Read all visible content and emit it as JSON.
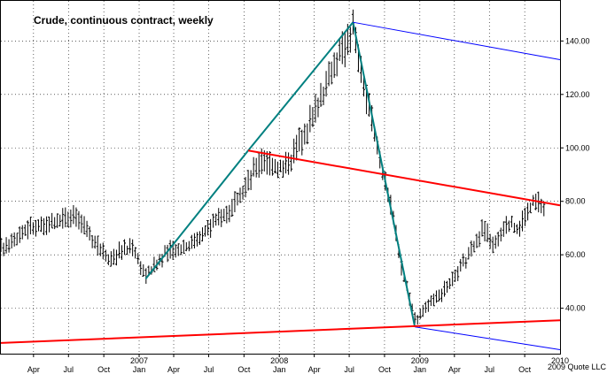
{
  "chart_data": {
    "type": "bar",
    "title": "Crude, continuous contract, weekly",
    "xlabel": "",
    "ylabel": "",
    "credit": "2009 Quote LLC",
    "date_range": [
      "2006-01-06",
      "2010-01-01"
    ],
    "ylim": [
      23,
      155
    ],
    "y_ticks": [
      {
        "value": 40,
        "label": "40.00"
      },
      {
        "value": 60,
        "label": "60.00"
      },
      {
        "value": 80,
        "label": "80.00"
      },
      {
        "value": 100,
        "label": "100.00"
      },
      {
        "value": 120,
        "label": "120.00"
      },
      {
        "value": 140,
        "label": "140.00"
      }
    ],
    "month_ticks": [
      {
        "date": "2006-04-01",
        "label": "Apr"
      },
      {
        "date": "2006-07-01",
        "label": "Jul"
      },
      {
        "date": "2006-10-01",
        "label": "Oct"
      },
      {
        "date": "2007-01-01",
        "label": "Jan"
      },
      {
        "date": "2007-04-01",
        "label": "Apr"
      },
      {
        "date": "2007-07-01",
        "label": "Jul"
      },
      {
        "date": "2007-10-01",
        "label": "Oct"
      },
      {
        "date": "2008-01-01",
        "label": "Jan"
      },
      {
        "date": "2008-04-01",
        "label": "Apr"
      },
      {
        "date": "2008-07-01",
        "label": "Jul"
      },
      {
        "date": "2008-10-01",
        "label": "Oct"
      },
      {
        "date": "2009-01-01",
        "label": "Jan"
      },
      {
        "date": "2009-04-01",
        "label": "Apr"
      },
      {
        "date": "2009-07-01",
        "label": "Jul"
      },
      {
        "date": "2009-10-01",
        "label": "Oct"
      }
    ],
    "year_ticks": [
      {
        "date": "2007-01-01",
        "label": "2007"
      },
      {
        "date": "2008-01-01",
        "label": "2008"
      },
      {
        "date": "2009-01-01",
        "label": "2009"
      },
      {
        "date": "2010-01-01",
        "label": "2010"
      }
    ],
    "price_path": [
      {
        "date": "2006-01-06",
        "value": 62
      },
      {
        "date": "2006-03-15",
        "value": 70
      },
      {
        "date": "2006-05-15",
        "value": 71
      },
      {
        "date": "2006-07-15",
        "value": 76
      },
      {
        "date": "2006-09-01",
        "value": 66
      },
      {
        "date": "2006-10-15",
        "value": 59
      },
      {
        "date": "2006-12-15",
        "value": 63
      },
      {
        "date": "2007-01-18",
        "value": 52
      },
      {
        "date": "2007-03-15",
        "value": 61
      },
      {
        "date": "2007-05-15",
        "value": 64
      },
      {
        "date": "2007-08-01",
        "value": 74
      },
      {
        "date": "2007-09-15",
        "value": 80
      },
      {
        "date": "2007-11-15",
        "value": 96
      },
      {
        "date": "2008-01-15",
        "value": 92
      },
      {
        "date": "2008-03-15",
        "value": 108
      },
      {
        "date": "2008-05-15",
        "value": 128
      },
      {
        "date": "2008-07-11",
        "value": 145
      },
      {
        "date": "2008-08-15",
        "value": 118
      },
      {
        "date": "2008-10-15",
        "value": 80
      },
      {
        "date": "2008-11-15",
        "value": 55
      },
      {
        "date": "2008-12-20",
        "value": 36
      },
      {
        "date": "2009-01-30",
        "value": 42
      },
      {
        "date": "2009-03-15",
        "value": 48
      },
      {
        "date": "2009-05-01",
        "value": 58
      },
      {
        "date": "2009-06-15",
        "value": 70
      },
      {
        "date": "2009-07-15",
        "value": 63
      },
      {
        "date": "2009-08-15",
        "value": 72
      },
      {
        "date": "2009-09-15",
        "value": 70
      },
      {
        "date": "2009-10-25",
        "value": 80
      },
      {
        "date": "2009-11-25",
        "value": 77
      }
    ],
    "trendlines": [
      {
        "color": "#008080",
        "width": 2,
        "from": {
          "date": "2007-01-18",
          "value": 51
        },
        "to": {
          "date": "2007-10-12",
          "value": 99
        }
      },
      {
        "color": "#008080",
        "width": 2,
        "from": {
          "date": "2007-10-12",
          "value": 99
        },
        "to": {
          "date": "2008-07-11",
          "value": 147
        }
      },
      {
        "color": "#008080",
        "width": 2,
        "from": {
          "date": "2008-07-11",
          "value": 147
        },
        "to": {
          "date": "2008-12-19",
          "value": 33
        }
      },
      {
        "color": "#0000ff",
        "width": 1,
        "from": {
          "date": "2008-07-11",
          "value": 147
        },
        "to": {
          "date": "2010-01-01",
          "value": 133
        }
      },
      {
        "color": "#0000ff",
        "width": 1,
        "from": {
          "date": "2008-12-19",
          "value": 33
        },
        "to": {
          "date": "2010-01-01",
          "value": 24.5
        }
      },
      {
        "color": "#ff0000",
        "width": 2,
        "from": {
          "date": "2007-10-12",
          "value": 99
        },
        "to": {
          "date": "2010-01-01",
          "value": 78.5
        }
      },
      {
        "color": "#ff0000",
        "width": 2,
        "from": {
          "date": "2006-01-06",
          "value": 27
        },
        "to": {
          "date": "2010-01-01",
          "value": 35.5
        }
      }
    ]
  }
}
